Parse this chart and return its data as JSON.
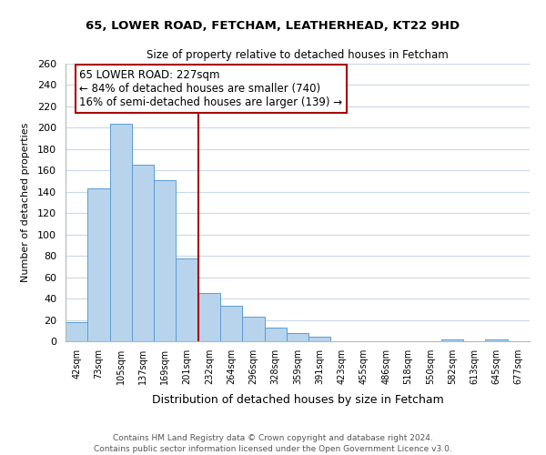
{
  "title1": "65, LOWER ROAD, FETCHAM, LEATHERHEAD, KT22 9HD",
  "title2": "Size of property relative to detached houses in Fetcham",
  "xlabel": "Distribution of detached houses by size in Fetcham",
  "ylabel": "Number of detached properties",
  "bin_labels": [
    "42sqm",
    "73sqm",
    "105sqm",
    "137sqm",
    "169sqm",
    "201sqm",
    "232sqm",
    "264sqm",
    "296sqm",
    "328sqm",
    "359sqm",
    "391sqm",
    "423sqm",
    "455sqm",
    "486sqm",
    "518sqm",
    "550sqm",
    "582sqm",
    "613sqm",
    "645sqm",
    "677sqm"
  ],
  "bar_heights": [
    18,
    143,
    204,
    165,
    151,
    78,
    45,
    33,
    23,
    13,
    8,
    4,
    0,
    0,
    0,
    0,
    0,
    2,
    0,
    2,
    0
  ],
  "bar_color": "#b8d4ed",
  "bar_edge_color": "#5b9bd5",
  "highlight_bin_index": 6,
  "vline_color": "#aa0000",
  "annotation_title": "65 LOWER ROAD: 227sqm",
  "annotation_line1": "← 84% of detached houses are smaller (740)",
  "annotation_line2": "16% of semi-detached houses are larger (139) →",
  "annotation_box_color": "#ffffff",
  "annotation_box_edge": "#aa0000",
  "ylim": [
    0,
    260
  ],
  "yticks": [
    0,
    20,
    40,
    60,
    80,
    100,
    120,
    140,
    160,
    180,
    200,
    220,
    240,
    260
  ],
  "footer1": "Contains HM Land Registry data © Crown copyright and database right 2024.",
  "footer2": "Contains public sector information licensed under the Open Government Licence v3.0.",
  "background_color": "#ffffff",
  "grid_color": "#c8d8e8"
}
